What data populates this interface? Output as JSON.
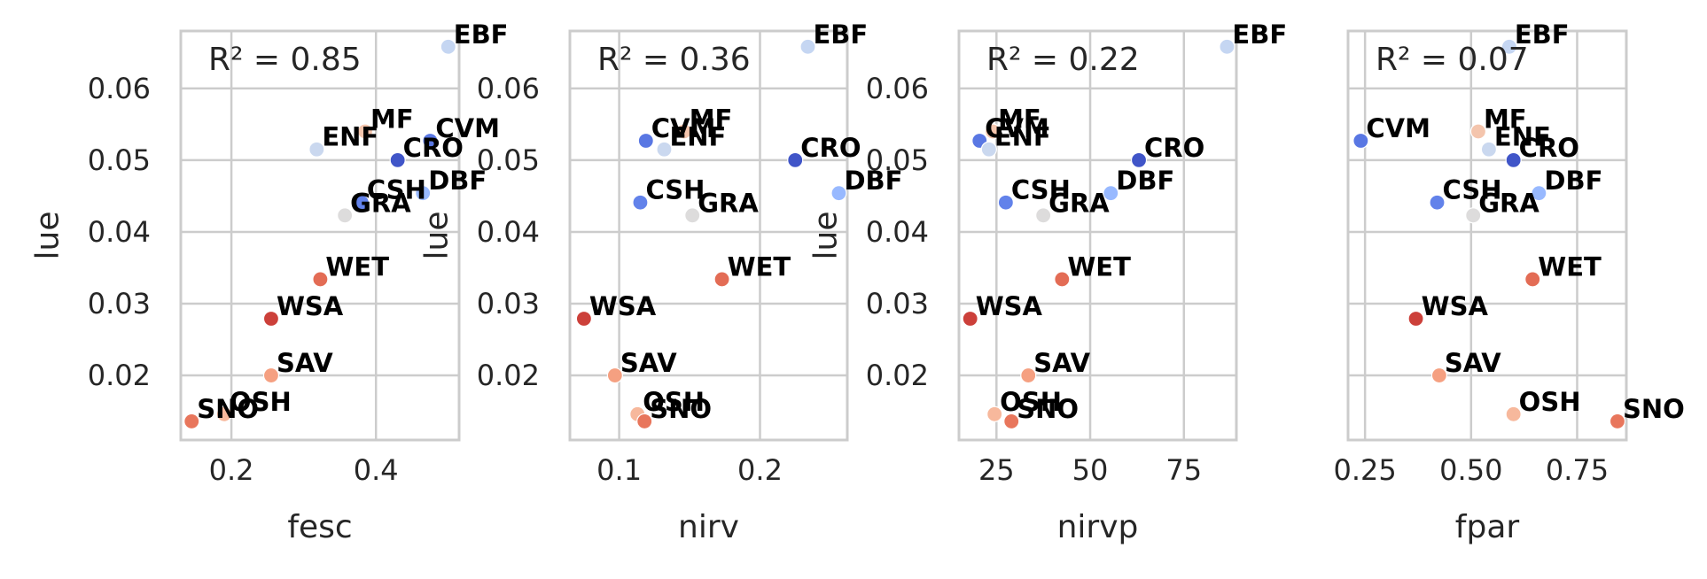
{
  "chart_data": [
    {
      "type": "scatter",
      "xlabel": "fesc",
      "ylabel": "lue",
      "annotation": "R² = 0.85",
      "xlim": [
        0.13,
        0.515
      ],
      "ylim": [
        0.011,
        0.068
      ],
      "xticks": [
        0.2,
        0.4
      ],
      "xtick_labels": [
        "0.2",
        "0.4"
      ],
      "yticks": [
        0.02,
        0.03,
        0.04,
        0.05,
        0.06
      ],
      "ytick_labels": [
        "0.02",
        "0.03",
        "0.04",
        "0.05",
        "0.06"
      ],
      "grid": true,
      "points": [
        {
          "label": "EBF",
          "x": 0.5,
          "y": 0.0658,
          "color": "#c5d6f2"
        },
        {
          "label": "MF",
          "x": 0.385,
          "y": 0.054,
          "color": "#f4c5ad"
        },
        {
          "label": "CVM",
          "x": 0.475,
          "y": 0.0527,
          "color": "#5977e3"
        },
        {
          "label": "ENF",
          "x": 0.318,
          "y": 0.0515,
          "color": "#cad8ef"
        },
        {
          "label": "CRO",
          "x": 0.43,
          "y": 0.05,
          "color": "#4055c8"
        },
        {
          "label": "DBF",
          "x": 0.465,
          "y": 0.0454,
          "color": "#98b9ff"
        },
        {
          "label": "CSH",
          "x": 0.38,
          "y": 0.0441,
          "color": "#6282ea"
        },
        {
          "label": "GRA",
          "x": 0.357,
          "y": 0.0423,
          "color": "#dddcdc"
        },
        {
          "label": "WET",
          "x": 0.323,
          "y": 0.0334,
          "color": "#e36c55"
        },
        {
          "label": "WSA",
          "x": 0.255,
          "y": 0.0279,
          "color": "#cc403a"
        },
        {
          "label": "SAV",
          "x": 0.255,
          "y": 0.02,
          "color": "#f5a081"
        },
        {
          "label": "OSH",
          "x": 0.19,
          "y": 0.0146,
          "color": "#f7b89c"
        },
        {
          "label": "SNO",
          "x": 0.145,
          "y": 0.0136,
          "color": "#e8765c"
        }
      ]
    },
    {
      "type": "scatter",
      "xlabel": "nirv",
      "ylabel": "lue",
      "annotation": "R² = 0.36",
      "xlim": [
        0.065,
        0.262
      ],
      "ylim": [
        0.011,
        0.068
      ],
      "xticks": [
        0.1,
        0.2
      ],
      "xtick_labels": [
        "0.1",
        "0.2"
      ],
      "yticks": [
        0.02,
        0.03,
        0.04,
        0.05,
        0.06
      ],
      "ytick_labels": [
        "0.02",
        "0.03",
        "0.04",
        "0.05",
        "0.06"
      ],
      "grid": true,
      "points": [
        {
          "label": "EBF",
          "x": 0.234,
          "y": 0.0658,
          "color": "#c5d6f2"
        },
        {
          "label": "MF",
          "x": 0.146,
          "y": 0.054,
          "color": "#f4c5ad"
        },
        {
          "label": "CVM",
          "x": 0.119,
          "y": 0.0527,
          "color": "#5977e3"
        },
        {
          "label": "ENF",
          "x": 0.132,
          "y": 0.0515,
          "color": "#cad8ef"
        },
        {
          "label": "CRO",
          "x": 0.225,
          "y": 0.05,
          "color": "#4055c8"
        },
        {
          "label": "DBF",
          "x": 0.256,
          "y": 0.0454,
          "color": "#98b9ff"
        },
        {
          "label": "CSH",
          "x": 0.115,
          "y": 0.0441,
          "color": "#6282ea"
        },
        {
          "label": "GRA",
          "x": 0.152,
          "y": 0.0423,
          "color": "#dddcdc"
        },
        {
          "label": "WET",
          "x": 0.173,
          "y": 0.0334,
          "color": "#e36c55"
        },
        {
          "label": "WSA",
          "x": 0.075,
          "y": 0.0279,
          "color": "#cc403a"
        },
        {
          "label": "SAV",
          "x": 0.097,
          "y": 0.02,
          "color": "#f5a081"
        },
        {
          "label": "OSH",
          "x": 0.113,
          "y": 0.0146,
          "color": "#f7b89c"
        },
        {
          "label": "SNO",
          "x": 0.118,
          "y": 0.0136,
          "color": "#e8765c"
        }
      ]
    },
    {
      "type": "scatter",
      "xlabel": "nirvp",
      "ylabel": "lue",
      "annotation": "R² = 0.22",
      "xlim": [
        15,
        89
      ],
      "ylim": [
        0.011,
        0.068
      ],
      "xticks": [
        25,
        50,
        75
      ],
      "xtick_labels": [
        "25",
        "50",
        "75"
      ],
      "yticks": [
        0.02,
        0.03,
        0.04,
        0.05,
        0.06
      ],
      "ytick_labels": [
        "0.02",
        "0.03",
        "0.04",
        "0.05",
        "0.06"
      ],
      "grid": true,
      "points": [
        {
          "label": "EBF",
          "x": 86.5,
          "y": 0.0658,
          "color": "#c5d6f2"
        },
        {
          "label": "MF",
          "x": 24,
          "y": 0.054,
          "color": "#f4c5ad"
        },
        {
          "label": "CVM",
          "x": 20.5,
          "y": 0.0527,
          "color": "#5977e3"
        },
        {
          "label": "ENF",
          "x": 23,
          "y": 0.0515,
          "color": "#cad8ef"
        },
        {
          "label": "CRO",
          "x": 63,
          "y": 0.05,
          "color": "#4055c8"
        },
        {
          "label": "DBF",
          "x": 55.5,
          "y": 0.0454,
          "color": "#98b9ff"
        },
        {
          "label": "CSH",
          "x": 27.5,
          "y": 0.0441,
          "color": "#6282ea"
        },
        {
          "label": "GRA",
          "x": 37.5,
          "y": 0.0423,
          "color": "#dddcdc"
        },
        {
          "label": "WET",
          "x": 42.5,
          "y": 0.0334,
          "color": "#e36c55"
        },
        {
          "label": "WSA",
          "x": 18,
          "y": 0.0279,
          "color": "#cc403a"
        },
        {
          "label": "SAV",
          "x": 33.5,
          "y": 0.02,
          "color": "#f5a081"
        },
        {
          "label": "OSH",
          "x": 24.5,
          "y": 0.0146,
          "color": "#f7b89c"
        },
        {
          "label": "SNO",
          "x": 29,
          "y": 0.0136,
          "color": "#e8765c"
        }
      ]
    },
    {
      "type": "scatter",
      "xlabel": "fpar",
      "ylabel": "",
      "annotation": "R² = 0.07",
      "xlim": [
        0.21,
        0.866
      ],
      "ylim": [
        0.011,
        0.068
      ],
      "xticks": [
        0.25,
        0.5,
        0.75
      ],
      "xtick_labels": [
        "0.25",
        "0.50",
        "0.75"
      ],
      "yticks": [
        0.02,
        0.03,
        0.04,
        0.05,
        0.06
      ],
      "ytick_labels": [],
      "grid": true,
      "points": [
        {
          "label": "EBF",
          "x": 0.59,
          "y": 0.0658,
          "color": "#c5d6f2"
        },
        {
          "label": "MF",
          "x": 0.517,
          "y": 0.054,
          "color": "#f4c5ad"
        },
        {
          "label": "CVM",
          "x": 0.24,
          "y": 0.0527,
          "color": "#5977e3"
        },
        {
          "label": "ENF",
          "x": 0.542,
          "y": 0.0515,
          "color": "#cad8ef"
        },
        {
          "label": "CRO",
          "x": 0.6,
          "y": 0.05,
          "color": "#4055c8"
        },
        {
          "label": "DBF",
          "x": 0.66,
          "y": 0.0454,
          "color": "#98b9ff"
        },
        {
          "label": "CSH",
          "x": 0.42,
          "y": 0.0441,
          "color": "#6282ea"
        },
        {
          "label": "GRA",
          "x": 0.505,
          "y": 0.0423,
          "color": "#dddcdc"
        },
        {
          "label": "WET",
          "x": 0.645,
          "y": 0.0334,
          "color": "#e36c55"
        },
        {
          "label": "WSA",
          "x": 0.37,
          "y": 0.0279,
          "color": "#cc403a"
        },
        {
          "label": "SAV",
          "x": 0.425,
          "y": 0.02,
          "color": "#f5a081"
        },
        {
          "label": "OSH",
          "x": 0.6,
          "y": 0.0146,
          "color": "#f7b89c"
        },
        {
          "label": "SNO",
          "x": 0.845,
          "y": 0.0136,
          "color": "#e8765c"
        }
      ]
    }
  ],
  "style": {
    "grid_color": "#cccccc",
    "spine_color": "#cccccc",
    "text_color": "#262626",
    "point_label_color": "#000000"
  }
}
